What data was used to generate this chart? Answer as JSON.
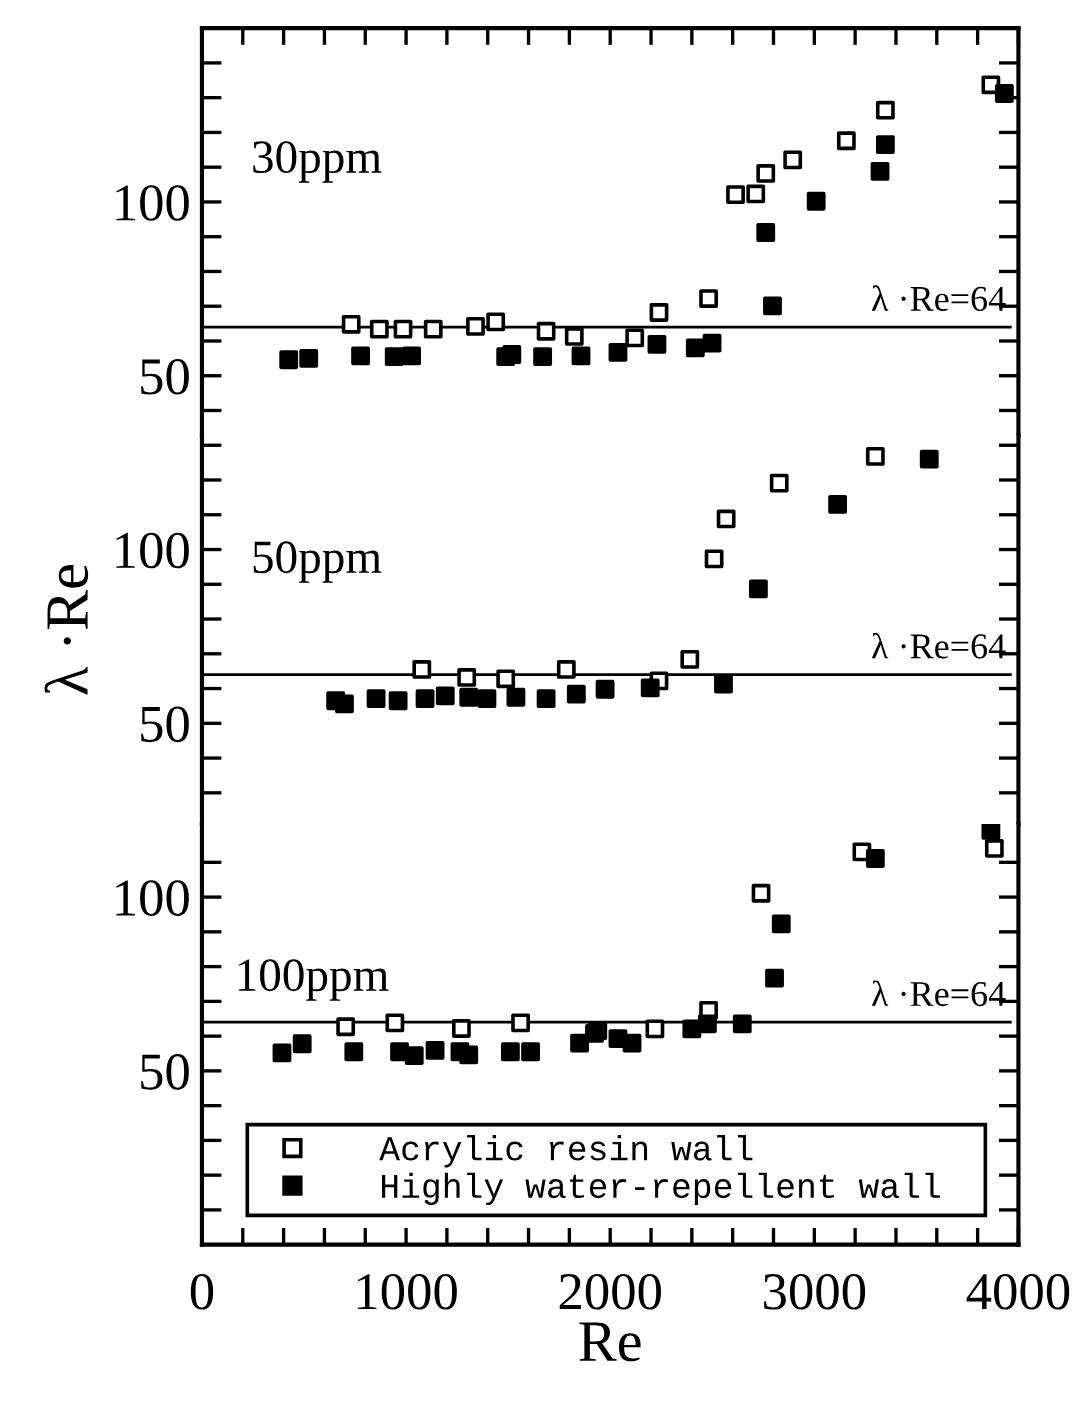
{
  "chart_data": [
    {
      "type": "scatter",
      "xlim": [
        0,
        4000
      ],
      "ylim": [
        33,
        150
      ],
      "tick_labels": "y",
      "marker": "square",
      "xticks": [
        0,
        200,
        400,
        600,
        800,
        1000,
        1200,
        1400,
        1600,
        1800,
        2000,
        2200,
        2400,
        2600,
        2800,
        3000,
        3200,
        3400,
        3600,
        3800,
        4000
      ],
      "yticks": [
        {
          "value": 40,
          "label": null
        },
        50,
        {
          "value": 60,
          "label": null
        },
        {
          "value": 70,
          "label": null
        },
        {
          "value": 80,
          "label": null
        },
        {
          "value": 90,
          "label": null
        },
        100,
        {
          "value": 110,
          "label": null
        },
        {
          "value": 120,
          "label": null
        },
        {
          "value": 130,
          "label": null
        },
        {
          "value": 140,
          "label": null
        }
      ],
      "annotations": [
        "30ppm"
      ],
      "ref_lines": [
        {
          "axis": "y",
          "value": 64,
          "label": "λ ·Re=64"
        }
      ],
      "series": [
        {
          "color": "#ffffff",
          "x": [
            731,
            869,
            985,
            1133,
            1340,
            1439,
            1686,
            1824,
            2120,
            2239,
            2482,
            2614,
            2713,
            2762,
            2894,
            3157,
            3348,
            3865
          ],
          "values": [
            64.8,
            63.4,
            63.4,
            63.4,
            64.2,
            65.5,
            62.8,
            61.3,
            60.9,
            68.2,
            72.2,
            102.1,
            102.3,
            108.2,
            112.1,
            117.6,
            126.4,
            133.7
          ]
        },
        {
          "color": "#000000",
          "x": [
            425,
            523,
            777,
            942,
            1027,
            1488,
            1518,
            1669,
            1857,
            2038,
            2229,
            2417,
            2499,
            2762,
            2795,
            3009,
            3322,
            3348,
            3931
          ],
          "values": [
            54.6,
            55.0,
            55.7,
            55.5,
            55.7,
            55.5,
            56.1,
            55.5,
            55.7,
            56.7,
            59.0,
            58.0,
            59.4,
            91.2,
            70.1,
            100.2,
            108.8,
            116.5,
            131.2
          ]
        }
      ]
    },
    {
      "type": "scatter",
      "xlim": [
        0,
        4000
      ],
      "ylim": [
        21,
        133
      ],
      "tick_labels": "y",
      "marker": "square",
      "ylabel": "λ ·Re",
      "yticks": [
        {
          "value": 30,
          "label": null
        },
        {
          "value": 40,
          "label": null
        },
        50,
        {
          "value": 60,
          "label": null
        },
        {
          "value": 70,
          "label": null
        },
        {
          "value": 80,
          "label": null
        },
        {
          "value": 90,
          "label": null
        },
        100,
        {
          "value": 110,
          "label": null
        },
        {
          "value": 120,
          "label": null
        },
        {
          "value": 130,
          "label": null
        }
      ],
      "annotations": [
        "50ppm"
      ],
      "ref_lines": [
        {
          "axis": "y",
          "value": 64,
          "label": "λ ·Re=64"
        }
      ],
      "series": [
        {
          "color": "#ffffff",
          "x": [
            1077,
            1297,
            1488,
            1785,
            2239,
            2390,
            2509,
            2568,
            2828,
            3299
          ],
          "values": [
            65.5,
            63.2,
            62.8,
            65.5,
            62.2,
            68.4,
            97.3,
            108.8,
            119.1,
            126.8
          ]
        },
        {
          "color": "#000000",
          "x": [
            655,
            698,
            853,
            961,
            1093,
            1192,
            1307,
            1396,
            1538,
            1686,
            1834,
            1975,
            2196,
            2555,
            2726,
            3114,
            3563
          ],
          "values": [
            56.5,
            55.6,
            57.1,
            56.5,
            57.1,
            57.9,
            57.5,
            57.1,
            57.5,
            57.1,
            58.4,
            59.8,
            60.2,
            61.3,
            88.7,
            113,
            126
          ]
        }
      ]
    },
    {
      "type": "scatter",
      "xlim": [
        0,
        4000
      ],
      "ylim": [
        0,
        121
      ],
      "marker": "square",
      "xlabel": "Re",
      "legend": "bottom",
      "xticks": [
        0,
        {
          "value": 200,
          "label": null
        },
        {
          "value": 400,
          "label": null
        },
        {
          "value": 600,
          "label": null
        },
        {
          "value": 800,
          "label": null
        },
        1000,
        {
          "value": 1200,
          "label": null
        },
        {
          "value": 1400,
          "label": null
        },
        {
          "value": 1600,
          "label": null
        },
        {
          "value": 1800,
          "label": null
        },
        2000,
        {
          "value": 2200,
          "label": null
        },
        {
          "value": 2400,
          "label": null
        },
        {
          "value": 2600,
          "label": null
        },
        {
          "value": 2800,
          "label": null
        },
        3000,
        {
          "value": 3200,
          "label": null
        },
        {
          "value": 3400,
          "label": null
        },
        {
          "value": 3600,
          "label": null
        },
        {
          "value": 3800,
          "label": null
        },
        4000
      ],
      "yticks": [
        {
          "value": 10,
          "label": null
        },
        {
          "value": 20,
          "label": null
        },
        {
          "value": 30,
          "label": null
        },
        {
          "value": 40,
          "label": null
        },
        50,
        {
          "value": 60,
          "label": null
        },
        {
          "value": 70,
          "label": null
        },
        {
          "value": 80,
          "label": null
        },
        {
          "value": 90,
          "label": null
        },
        100,
        {
          "value": 110,
          "label": null
        }
      ],
      "annotations": [
        "100ppm"
      ],
      "ref_lines": [
        {
          "axis": "y",
          "value": 64,
          "label": "λ ·Re=64"
        }
      ],
      "series": [
        {
          "name": "Acrylic resin wall",
          "color": "#ffffff",
          "x": [
            704,
            945,
            1271,
            1561,
            1939,
            2219,
            2482,
            2739,
            3233,
            3882
          ],
          "values": [
            62.7,
            63.8,
            62.2,
            63.8,
            61.6,
            62.1,
            67.4,
            101.1,
            113,
            114
          ]
        },
        {
          "name": "Highly water-repellent wall",
          "color": "#000000",
          "x": [
            392,
            491,
            744,
            968,
            1040,
            1142,
            1264,
            1307,
            1511,
            1610,
            1850,
            1923,
            2038,
            2107,
            2400,
            2476,
            2647,
            2805,
            2838,
            3299,
            3865
          ],
          "values": [
            55.2,
            57.8,
            55.5,
            55.5,
            54.4,
            55.9,
            55.5,
            54.6,
            55.5,
            55.5,
            58,
            60.8,
            59.3,
            58,
            62.1,
            63.5,
            63.5,
            76.7,
            92.3,
            111.1,
            119.2
          ]
        }
      ]
    }
  ]
}
